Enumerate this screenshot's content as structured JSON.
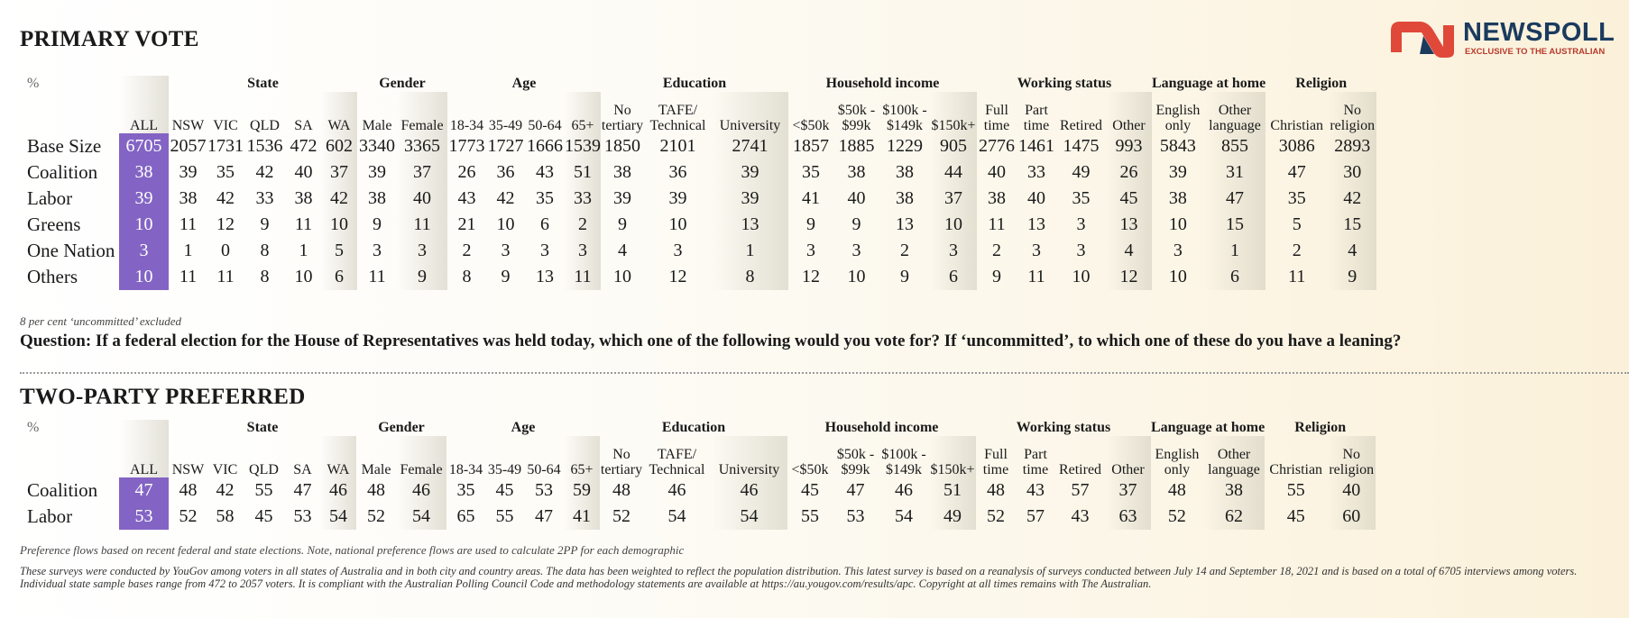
{
  "primary": {
    "title": "PRIMARY VOTE",
    "note": "8 per cent ‘uncommitted’ excluded",
    "question": "Question: If a federal election for the House of Representatives was held today, which one of the following would you vote for? If ‘uncommitted’, to which one of these do you have a leaning?",
    "rows": [
      {
        "label": "Base Size",
        "values": [
          "6705",
          "2057",
          "1731",
          "1536",
          "472",
          "602",
          "3340",
          "3365",
          "1773",
          "1727",
          "1666",
          "1539",
          "1850",
          "2101",
          "2741",
          "1857",
          "1885",
          "1229",
          "905",
          "2776",
          "1461",
          "1475",
          "993",
          "5843",
          "855",
          "3086",
          "2893"
        ]
      },
      {
        "label": "Coalition",
        "values": [
          "38",
          "39",
          "35",
          "42",
          "40",
          "37",
          "39",
          "37",
          "26",
          "36",
          "43",
          "51",
          "38",
          "36",
          "39",
          "35",
          "38",
          "38",
          "44",
          "40",
          "33",
          "49",
          "26",
          "39",
          "31",
          "47",
          "30"
        ]
      },
      {
        "label": "Labor",
        "values": [
          "39",
          "38",
          "42",
          "33",
          "38",
          "42",
          "38",
          "40",
          "43",
          "42",
          "35",
          "33",
          "39",
          "39",
          "39",
          "41",
          "40",
          "38",
          "37",
          "38",
          "40",
          "35",
          "45",
          "38",
          "47",
          "35",
          "42"
        ]
      },
      {
        "label": "Greens",
        "values": [
          "10",
          "11",
          "12",
          "9",
          "11",
          "10",
          "9",
          "11",
          "21",
          "10",
          "6",
          "2",
          "9",
          "10",
          "13",
          "9",
          "9",
          "13",
          "10",
          "11",
          "13",
          "3",
          "13",
          "10",
          "15",
          "5",
          "15"
        ]
      },
      {
        "label": "One Nation",
        "values": [
          "3",
          "1",
          "0",
          "8",
          "1",
          "5",
          "3",
          "3",
          "2",
          "3",
          "3",
          "3",
          "4",
          "3",
          "1",
          "3",
          "3",
          "2",
          "3",
          "2",
          "3",
          "3",
          "4",
          "3",
          "1",
          "2",
          "4"
        ]
      },
      {
        "label": "Others",
        "values": [
          "10",
          "11",
          "11",
          "8",
          "10",
          "6",
          "11",
          "9",
          "8",
          "9",
          "13",
          "11",
          "10",
          "12",
          "8",
          "12",
          "10",
          "9",
          "6",
          "9",
          "11",
          "10",
          "12",
          "10",
          "6",
          "11",
          "9"
        ]
      }
    ]
  },
  "tpp": {
    "title": "TWO-PARTY PREFERRED",
    "note": "Preference flows based on recent federal and state elections. Note, national preference flows are used to calculate 2PP for each demographic",
    "rows": [
      {
        "label": "Coalition",
        "values": [
          "47",
          "48",
          "42",
          "55",
          "47",
          "46",
          "48",
          "46",
          "35",
          "45",
          "53",
          "59",
          "48",
          "46",
          "46",
          "45",
          "47",
          "46",
          "51",
          "48",
          "43",
          "57",
          "37",
          "48",
          "38",
          "55",
          "40"
        ]
      },
      {
        "label": "Labor",
        "values": [
          "53",
          "52",
          "58",
          "45",
          "53",
          "54",
          "52",
          "54",
          "65",
          "55",
          "47",
          "41",
          "52",
          "54",
          "54",
          "55",
          "53",
          "54",
          "49",
          "52",
          "57",
          "43",
          "63",
          "52",
          "62",
          "45",
          "60"
        ]
      }
    ]
  },
  "header": {
    "percent": "%",
    "groups": [
      {
        "label": "",
        "span": 1
      },
      {
        "label": "State",
        "span": 5
      },
      {
        "label": "Gender",
        "span": 2
      },
      {
        "label": "Age",
        "span": 4
      },
      {
        "label": "Education",
        "span": 3
      },
      {
        "label": "Household income",
        "span": 4
      },
      {
        "label": "Working status",
        "span": 4
      },
      {
        "label": "Language at home",
        "span": 2
      },
      {
        "label": "Religion",
        "span": 2
      }
    ],
    "columns": [
      [
        "ALL"
      ],
      [
        "NSW"
      ],
      [
        "VIC"
      ],
      [
        "QLD"
      ],
      [
        "SA"
      ],
      [
        "WA"
      ],
      [
        "Male"
      ],
      [
        "Female"
      ],
      [
        "18-34"
      ],
      [
        "35-49"
      ],
      [
        "50-64"
      ],
      [
        "65+"
      ],
      [
        "No",
        "tertiary"
      ],
      [
        "TAFE/",
        "Technical"
      ],
      [
        "University"
      ],
      [
        "<$50k"
      ],
      [
        "$50k -",
        "$99k"
      ],
      [
        "$100k -",
        "$149k"
      ],
      [
        "$150k+"
      ],
      [
        "Full",
        "time"
      ],
      [
        "Part",
        "time"
      ],
      [
        "Retired"
      ],
      [
        "Other"
      ],
      [
        "English",
        "only"
      ],
      [
        "Other",
        "language"
      ],
      [
        "Christian"
      ],
      [
        "No",
        "religion"
      ]
    ]
  },
  "logo": {
    "brand": "NEWSPOLL",
    "tagline": "EXCLUSIVE TO THE AUSTRALIAN",
    "colors": {
      "red": "#e0483a",
      "navy": "#1b3b5e"
    }
  },
  "methodology": "These surveys were conducted by YouGov among voters in all states of Australia and in both city and country areas. The data has been weighted to reflect the population distribution. This latest survey is based on a reanalysis of surveys conducted between July 14 and September 18, 2021 and is based on a total of 6705 interviews among voters. Individual state sample bases range from 472 to 2057 voters. It is compliant with the Australian Polling Council Code and methodology statements are available at https://au.yougov.com/results/apc. Copyright at all times remains with The Australian.",
  "colors": {
    "all_column": "#8364c4"
  }
}
